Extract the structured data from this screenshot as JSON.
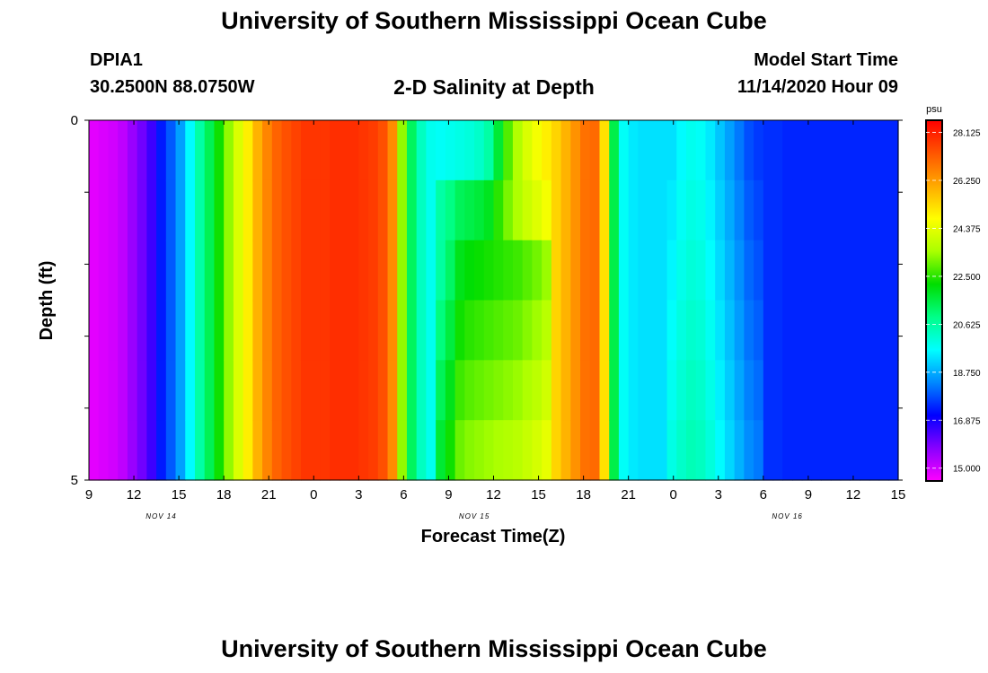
{
  "header": {
    "title": "University of Southern Mississippi Ocean Cube",
    "station": "DPIA1",
    "coords": "30.2500N 88.0750W",
    "plot_title": "2-D Salinity at Depth",
    "model_label": "Model Start Time",
    "model_time": "11/14/2020 Hour 09"
  },
  "footer": {
    "title": "University of Southern Mississippi Ocean Cube"
  },
  "chart_data": {
    "type": "heatmap",
    "title": "2-D Salinity at Depth",
    "xlabel": "Forecast Time(Z)",
    "ylabel": "Depth (ft)",
    "x_tick_labels": [
      "9",
      "12",
      "15",
      "18",
      "21",
      "0",
      "3",
      "6",
      "9",
      "12",
      "15",
      "18",
      "21",
      "0",
      "3",
      "6",
      "9",
      "12",
      "15"
    ],
    "day_labels": [
      "NOV 14",
      "NOV 15",
      "NOV 16"
    ],
    "y_tick_labels": [
      "0",
      "5"
    ],
    "ylim": [
      0,
      5
    ],
    "x_start": "2020-11-14T09:00Z",
    "x_end": "2020-11-16T15:00Z",
    "x_step_hours": 1,
    "depth_levels_ft": [
      0,
      1,
      2,
      3,
      4,
      5
    ],
    "colorbar": {
      "unit": "psu",
      "ticks": [
        "28.125",
        "26.250",
        "24.375",
        "22.500",
        "20.625",
        "18.750",
        "16.875",
        "15.000"
      ],
      "range": [
        14.5,
        28.6
      ],
      "colors": [
        "#ff00ff",
        "#8800ff",
        "#0000ff",
        "#0088ff",
        "#00ffff",
        "#00ff88",
        "#00dd00",
        "#aaff00",
        "#ffff00",
        "#ffaa00",
        "#ff5500",
        "#ff0000"
      ]
    },
    "salinity_profile_psu": [
      14.8,
      14.9,
      15.0,
      15.2,
      15.6,
      16.0,
      16.5,
      17.3,
      17.9,
      18.6,
      19.6,
      20.6,
      21.4,
      22.3,
      23.3,
      24.2,
      25.0,
      25.9,
      26.6,
      27.1,
      27.4,
      27.6,
      27.8,
      27.8,
      27.8,
      27.9,
      27.9,
      27.9,
      27.8,
      27.7,
      27.4,
      26.5,
      23.3,
      21.3,
      20.3,
      19.8,
      19.7,
      19.8,
      19.9,
      20.0,
      20.2,
      20.6,
      21.7,
      22.8,
      23.6,
      24.2,
      24.6,
      25.0,
      25.4,
      25.9,
      26.4,
      26.9,
      27.0,
      25.2,
      21.5,
      19.7,
      19.4,
      19.3,
      19.3,
      19.3,
      19.3,
      19.6,
      19.8,
      19.7,
      19.4,
      19.0,
      18.6,
      18.2,
      17.8,
      17.6,
      17.5,
      17.5,
      17.4,
      17.4,
      17.4,
      17.4,
      17.4,
      17.4,
      17.4,
      17.4,
      17.4,
      17.4,
      17.4,
      17.4
    ],
    "mid_window_profile_psu": [
      20.3,
      20.9,
      21.6,
      21.8,
      21.9,
      22.0,
      22.1,
      22.2,
      22.3,
      22.5,
      22.7,
      23.0
    ],
    "mid_window_start_index": 36
  }
}
